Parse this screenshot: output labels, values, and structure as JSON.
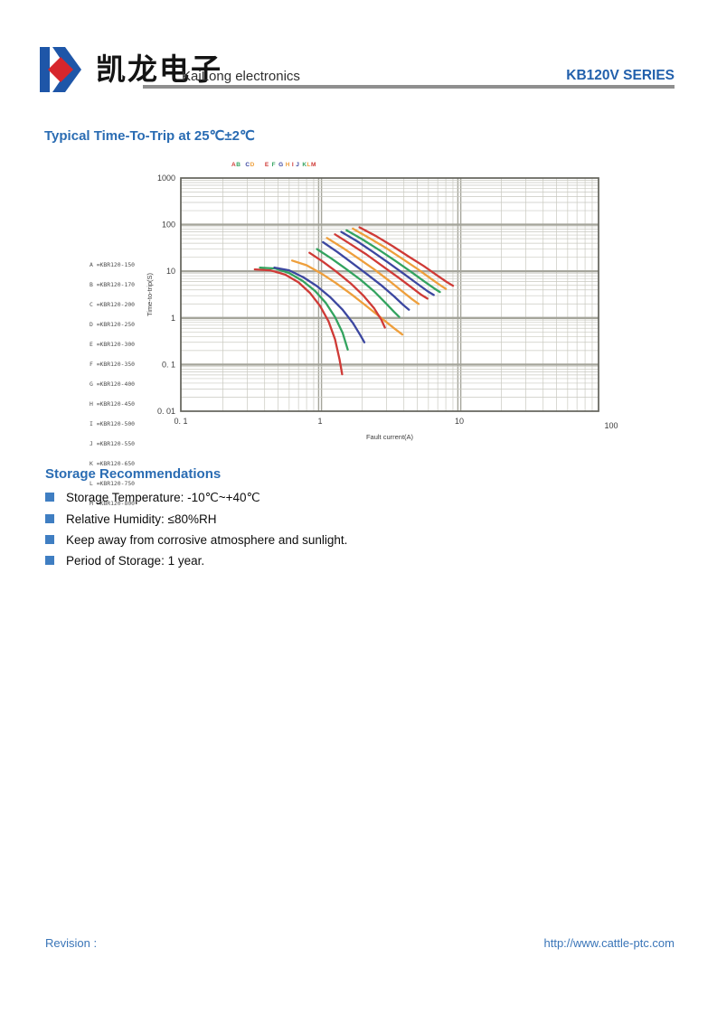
{
  "header": {
    "brand_cn": "凯龙电子",
    "brand_en": "KaiLong electronics",
    "series": "KB120V SERIES"
  },
  "title": "Typical Time-To-Trip at 25℃±2℃",
  "chart_data": {
    "type": "line",
    "scale": "log-log",
    "title": "Typical Time-To-Trip at 25℃±2℃",
    "xlabel": "Fault current(A)",
    "ylabel": "Time-to-trip(S)",
    "xlim": [
      0.1,
      100
    ],
    "ylim": [
      0.01,
      1000
    ],
    "grid": true,
    "legend_position": "left",
    "xticks": [
      {
        "v": 0.1,
        "label": "0. 1"
      },
      {
        "v": 1,
        "label": "1"
      },
      {
        "v": 10,
        "label": "10"
      },
      {
        "v": 100,
        "label": "100",
        "dx": 14,
        "dy": 5
      }
    ],
    "yticks": [
      {
        "v": 1000,
        "label": "1000"
      },
      {
        "v": 100,
        "label": "100"
      },
      {
        "v": 10,
        "label": "10"
      },
      {
        "v": 1,
        "label": "1"
      },
      {
        "v": 0.1,
        "label": "0. 1"
      },
      {
        "v": 0.01,
        "label": "0. 01"
      }
    ],
    "label_groups": [
      "AB",
      "CD",
      "E",
      "F",
      "G",
      "H",
      "I",
      "J",
      "KLM"
    ],
    "series": [
      {
        "letter": "A",
        "name": "KBR120-150",
        "legend": "A =KBR120-150",
        "color": "#cf3a36",
        "points": [
          [
            0.34,
            11
          ],
          [
            0.44,
            10.5
          ],
          [
            0.56,
            8.5
          ],
          [
            0.7,
            5.8
          ],
          [
            0.85,
            3.4
          ],
          [
            1.0,
            1.8
          ],
          [
            1.15,
            0.85
          ],
          [
            1.28,
            0.35
          ],
          [
            1.38,
            0.13
          ],
          [
            1.44,
            0.062
          ]
        ]
      },
      {
        "letter": "B",
        "name": "KBR120-170",
        "legend": "B =KBR120-170",
        "color": "#33a35f",
        "points": [
          [
            0.37,
            12
          ],
          [
            0.48,
            11.5
          ],
          [
            0.6,
            9.2
          ],
          [
            0.75,
            6.2
          ],
          [
            0.92,
            3.8
          ],
          [
            1.1,
            2.1
          ],
          [
            1.28,
            1.05
          ],
          [
            1.45,
            0.48
          ],
          [
            1.58,
            0.21
          ]
        ]
      },
      {
        "letter": "C",
        "name": "KBR120-200",
        "legend": "C =KBR120-200",
        "color": "#3c47a0",
        "points": [
          [
            0.47,
            12
          ],
          [
            0.6,
            10.5
          ],
          [
            0.76,
            7.4
          ],
          [
            0.95,
            4.8
          ],
          [
            1.18,
            2.8
          ],
          [
            1.45,
            1.5
          ],
          [
            1.72,
            0.78
          ],
          [
            1.95,
            0.42
          ],
          [
            2.08,
            0.3
          ]
        ]
      },
      {
        "letter": "D",
        "name": "KBR120-250",
        "legend": "D =KBR120-250",
        "color": "#ee9f3c",
        "points": [
          [
            0.63,
            17
          ],
          [
            0.8,
            13.5
          ],
          [
            1.02,
            9.0
          ],
          [
            1.3,
            5.6
          ],
          [
            1.68,
            3.2
          ],
          [
            2.15,
            1.8
          ],
          [
            2.75,
            1.0
          ],
          [
            3.4,
            0.6
          ],
          [
            3.9,
            0.44
          ]
        ]
      },
      {
        "letter": "E",
        "name": "KBR120-300",
        "legend": "E =KBR120-300",
        "color": "#cf3a36",
        "points": [
          [
            0.84,
            25
          ],
          [
            1.05,
            16
          ],
          [
            1.32,
            9.6
          ],
          [
            1.66,
            5.5
          ],
          [
            2.05,
            3.0
          ],
          [
            2.45,
            1.6
          ],
          [
            2.75,
            0.92
          ],
          [
            2.92,
            0.62
          ]
        ]
      },
      {
        "letter": "F",
        "name": "KBR120-350",
        "legend": "F =KBR120-350",
        "color": "#33a35f",
        "points": [
          [
            0.95,
            30
          ],
          [
            1.2,
            19
          ],
          [
            1.52,
            11.5
          ],
          [
            1.95,
            6.6
          ],
          [
            2.45,
            3.7
          ],
          [
            2.95,
            2.1
          ],
          [
            3.4,
            1.35
          ],
          [
            3.7,
            1.05
          ]
        ]
      },
      {
        "letter": "G",
        "name": "KBR120-400",
        "legend": "G =KBR120-400",
        "color": "#3c47a0",
        "points": [
          [
            1.05,
            42
          ],
          [
            1.33,
            26
          ],
          [
            1.7,
            15
          ],
          [
            2.18,
            8.6
          ],
          [
            2.78,
            4.9
          ],
          [
            3.4,
            2.9
          ],
          [
            3.95,
            1.9
          ],
          [
            4.35,
            1.5
          ]
        ]
      },
      {
        "letter": "H",
        "name": "KBR120-450",
        "legend": "H =KBR120-450",
        "color": "#ee9f3c",
        "points": [
          [
            1.12,
            52
          ],
          [
            1.45,
            32
          ],
          [
            1.88,
            19
          ],
          [
            2.45,
            11
          ],
          [
            3.15,
            6.2
          ],
          [
            3.9,
            3.7
          ],
          [
            4.6,
            2.5
          ],
          [
            5.1,
            2.0
          ]
        ]
      },
      {
        "letter": "I",
        "name": "KBR120-500",
        "legend": "I =KBR120-500",
        "color": "#cf3a36",
        "points": [
          [
            1.28,
            62
          ],
          [
            1.66,
            38
          ],
          [
            2.15,
            23
          ],
          [
            2.8,
            13
          ],
          [
            3.6,
            7.6
          ],
          [
            4.5,
            4.6
          ],
          [
            5.35,
            3.1
          ],
          [
            5.9,
            2.6
          ]
        ]
      },
      {
        "letter": "J",
        "name": "KBR120-550",
        "legend": "J =KBR120-550",
        "color": "#3c47a0",
        "points": [
          [
            1.42,
            70
          ],
          [
            1.85,
            44
          ],
          [
            2.4,
            26
          ],
          [
            3.12,
            15
          ],
          [
            4.0,
            8.8
          ],
          [
            5.0,
            5.4
          ],
          [
            5.95,
            3.7
          ],
          [
            6.55,
            3.1
          ]
        ]
      },
      {
        "letter": "K",
        "name": "KBR120-650",
        "legend": "K =KBR120-650",
        "color": "#33a35f",
        "points": [
          [
            1.55,
            76
          ],
          [
            2.02,
            48
          ],
          [
            2.64,
            29
          ],
          [
            3.45,
            17
          ],
          [
            4.45,
            10
          ],
          [
            5.55,
            6.2
          ],
          [
            6.6,
            4.3
          ],
          [
            7.25,
            3.6
          ]
        ]
      },
      {
        "letter": "L",
        "name": "KBR120-750",
        "legend": "L =KBR120-750",
        "color": "#ee9f3c",
        "points": [
          [
            1.72,
            82
          ],
          [
            2.25,
            52
          ],
          [
            2.95,
            32
          ],
          [
            3.85,
            19
          ],
          [
            4.95,
            11.5
          ],
          [
            6.15,
            7.2
          ],
          [
            7.3,
            5.0
          ],
          [
            8.0,
            4.2
          ]
        ]
      },
      {
        "letter": "M",
        "name": "KBR120-800",
        "legend": "M =KBR120-800",
        "color": "#cf3a36",
        "points": [
          [
            1.92,
            88
          ],
          [
            2.52,
            57
          ],
          [
            3.3,
            35
          ],
          [
            4.3,
            21
          ],
          [
            5.55,
            13
          ],
          [
            6.9,
            8.2
          ],
          [
            8.2,
            5.8
          ],
          [
            9.0,
            4.9
          ]
        ]
      }
    ]
  },
  "storage": {
    "heading": "Storage Recommendations",
    "items": [
      "Storage Temperature: -10℃~+40℃",
      "Relative Humidity: ≤80%RH",
      "Keep away from corrosive atmosphere and sunlight.",
      "Period of Storage: 1 year."
    ]
  },
  "footer": {
    "revision_label": "Revision :",
    "url": "http://www.cattle-ptc.com"
  }
}
